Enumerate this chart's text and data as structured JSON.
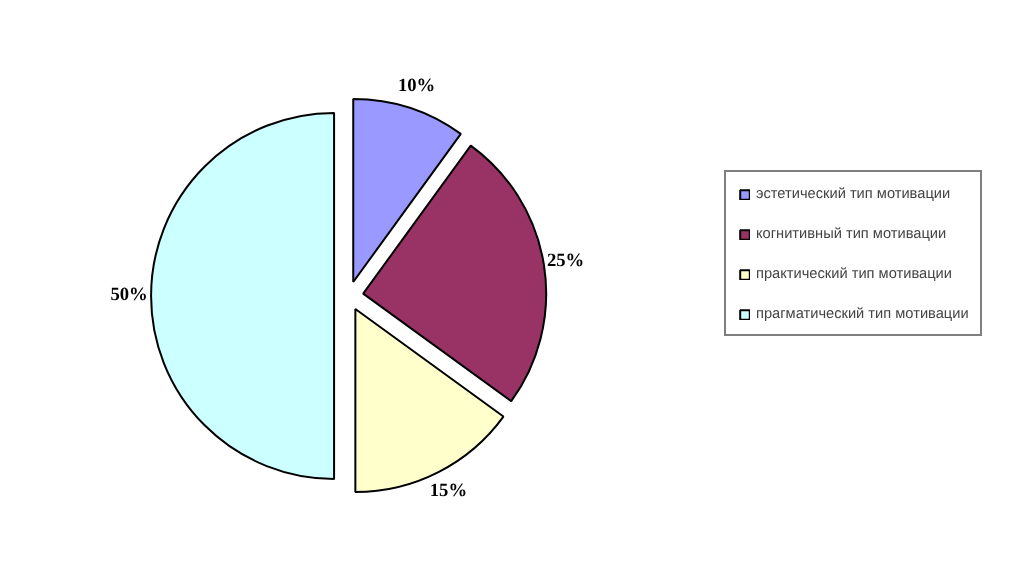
{
  "chart_data": {
    "type": "pie",
    "categories": [
      "эстетический тип мотивации",
      "когнитивный тип мотивации",
      "практический тип мотивации",
      "прагматический тип мотивации"
    ],
    "values": [
      10,
      25,
      15,
      50
    ],
    "colors": [
      "#9999ff",
      "#993366",
      "#ffffcc",
      "#ccffff"
    ],
    "value_labels": [
      "10%",
      "25%",
      "15%",
      "50%"
    ],
    "legend": "right"
  }
}
